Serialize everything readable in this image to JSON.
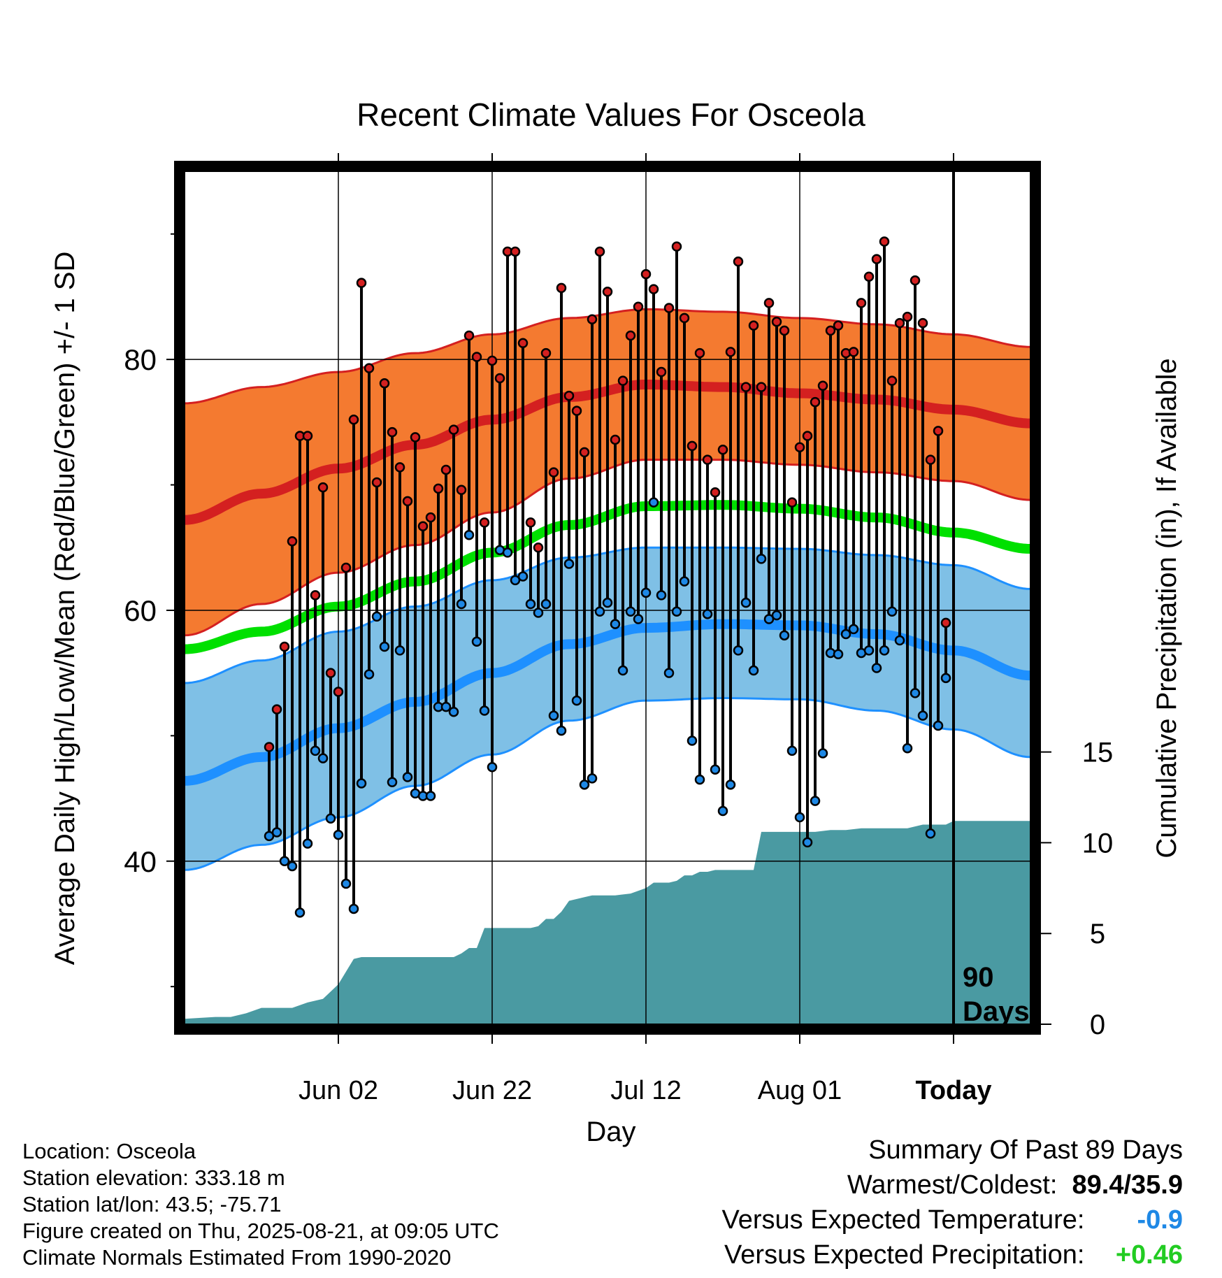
{
  "title": "Recent Climate Values For Osceola",
  "ylabel_left": "Average Daily High/Low/Mean (Red/Blue/Green) +/- 1 SD",
  "ylabel_right": "Cumulative Precipitation (in), If Available",
  "xlabel": "Day",
  "today_label": "Today",
  "days_label_1": "90",
  "days_label_2": "Days",
  "colors": {
    "high_band": "#f47a30",
    "high_line": "#d42020",
    "low_band": "#7fc0e6",
    "low_line": "#1e90ff",
    "mean_line": "#00e000",
    "precip_fill": "#4a9aa2",
    "high_dot": "#d42020",
    "low_dot": "#1e88e5"
  },
  "info": {
    "location": "Location: Osceola",
    "elevation": "Station elevation: 333.18 m",
    "latlon": "Station lat/lon: 43.5; -75.71",
    "created": "Figure created on Thu, 2025-08-21, at 09:05 UTC",
    "normals": "Climate Normals Estimated From 1990-2020"
  },
  "summary": {
    "heading": "Summary Of Past 89 Days",
    "warm_cold_label": "Warmest/Coldest:",
    "warm_cold_value": "89.4/35.9",
    "temp_label": "Versus Expected Temperature:",
    "temp_value": "-0.9",
    "temp_color": "#1e88e5",
    "precip_label": "Versus Expected Precipitation:",
    "precip_value": "+0.46",
    "precip_color": "#22cc22"
  },
  "chart_data": {
    "type": "line",
    "title": "Recent Climate Values For Osceola",
    "xlabel": "Day",
    "ylabel": "Average Daily High/Low/Mean (Red/Blue/Green) +/- 1 SD",
    "y2label": "Cumulative Precipitation (in), If Available",
    "x_range_days": [
      -100,
      10
    ],
    "x_unit": "days relative to today (2025-08-21)",
    "ylim": [
      27,
      95
    ],
    "y2lim": [
      0,
      47
    ],
    "y_ticks": [
      40,
      60,
      80
    ],
    "y_minor_ticks": [
      30,
      50,
      70,
      90
    ],
    "y2_ticks": [
      0,
      5,
      10,
      15
    ],
    "x_ticks": [
      {
        "day": -80,
        "label": "Jun 02"
      },
      {
        "day": -60,
        "label": "Jun 22"
      },
      {
        "day": -40,
        "label": "Jul 12"
      },
      {
        "day": -20,
        "label": "Aug 01"
      },
      {
        "day": 0,
        "label": "Today"
      }
    ],
    "grid": true,
    "normals": {
      "days": [
        -100,
        -90,
        -80,
        -70,
        -60,
        -50,
        -40,
        -30,
        -20,
        -10,
        0,
        10
      ],
      "high_mean": [
        67.2,
        69.3,
        71.3,
        73.2,
        75.2,
        77.0,
        78.0,
        77.8,
        77.3,
        76.8,
        76.0,
        74.9
      ],
      "high_upper": [
        76.5,
        77.8,
        79.0,
        80.5,
        82.0,
        83.3,
        84.0,
        83.8,
        83.3,
        82.8,
        82.0,
        81.0
      ],
      "high_lower": [
        58.0,
        60.5,
        63.0,
        65.2,
        67.8,
        70.5,
        72.0,
        72.0,
        71.6,
        71.0,
        70.3,
        68.8
      ],
      "mean": [
        56.9,
        58.3,
        60.3,
        62.3,
        64.6,
        66.8,
        68.3,
        68.4,
        68.1,
        67.4,
        66.2,
        64.9
      ],
      "low_mean": [
        46.4,
        48.3,
        50.6,
        52.7,
        55.0,
        57.3,
        58.6,
        58.9,
        58.8,
        58.1,
        56.8,
        54.8
      ],
      "low_upper": [
        54.2,
        56.0,
        58.3,
        60.3,
        62.4,
        64.2,
        65.0,
        65.0,
        64.9,
        64.4,
        63.6,
        61.7
      ],
      "low_lower": [
        39.3,
        41.3,
        43.5,
        46.0,
        48.5,
        51.2,
        52.8,
        53.0,
        52.9,
        52.0,
        50.5,
        48.3
      ]
    },
    "daily": {
      "days": [
        -89,
        -88,
        -87,
        -86,
        -85,
        -84,
        -83,
        -82,
        -81,
        -80,
        -79,
        -78,
        -77,
        -76,
        -75,
        -74,
        -73,
        -72,
        -71,
        -70,
        -69,
        -68,
        -67,
        -66,
        -65,
        -64,
        -63,
        -62,
        -61,
        -60,
        -59,
        -58,
        -57,
        -56,
        -55,
        -54,
        -53,
        -52,
        -51,
        -50,
        -49,
        -48,
        -47,
        -46,
        -45,
        -44,
        -43,
        -42,
        -41,
        -40,
        -39,
        -38,
        -37,
        -36,
        -35,
        -34,
        -33,
        -32,
        -31,
        -30,
        -29,
        -28,
        -27,
        -26,
        -25,
        -24,
        -23,
        -22,
        -21,
        -20,
        -19,
        -18,
        -17,
        -16,
        -15,
        -14,
        -13,
        -12,
        -11,
        -10,
        -9,
        -8,
        -7,
        -6,
        -5,
        -4,
        -3,
        -2,
        -1
      ],
      "highs": [
        49.1,
        52.1,
        57.1,
        65.5,
        73.9,
        73.9,
        61.2,
        69.8,
        55.0,
        53.5,
        63.4,
        75.2,
        86.1,
        79.3,
        70.2,
        78.1,
        74.2,
        71.4,
        68.7,
        73.8,
        66.7,
        67.4,
        69.7,
        71.2,
        74.4,
        69.6,
        81.9,
        80.2,
        67.0,
        79.9,
        78.5,
        88.6,
        88.6,
        81.3,
        67.0,
        65.0,
        80.5,
        71.0,
        85.7,
        77.1,
        75.9,
        72.6,
        83.2,
        88.6,
        85.4,
        73.6,
        78.3,
        81.9,
        84.2,
        86.8,
        85.6,
        79.0,
        84.1,
        89.0,
        83.3,
        73.1,
        80.5,
        72.0,
        69.4,
        72.8,
        80.6,
        87.8,
        77.8,
        82.7,
        77.8,
        84.5,
        83.0,
        82.3,
        68.6,
        73.0,
        73.9,
        76.6,
        77.9,
        82.3,
        82.7,
        80.5,
        80.6,
        84.5,
        86.6,
        88.0,
        89.4,
        78.3,
        82.9,
        83.4,
        86.3,
        82.9,
        72.0,
        74.3,
        59.0
      ],
      "lows": [
        42.0,
        42.3,
        40.0,
        39.6,
        35.9,
        41.4,
        48.8,
        48.2,
        43.4,
        42.1,
        38.2,
        36.2,
        46.2,
        54.9,
        59.5,
        57.1,
        46.3,
        56.8,
        46.7,
        45.4,
        45.2,
        45.2,
        52.3,
        52.3,
        51.9,
        60.5,
        66.0,
        57.5,
        52.0,
        47.5,
        64.8,
        64.6,
        62.4,
        62.7,
        60.5,
        59.8,
        60.5,
        51.6,
        50.4,
        63.7,
        52.8,
        46.1,
        46.6,
        59.9,
        60.6,
        58.9,
        55.2,
        59.9,
        59.3,
        61.4,
        68.6,
        61.2,
        55.0,
        59.9,
        62.3,
        49.6,
        46.5,
        59.7,
        47.3,
        44.0,
        46.1,
        56.8,
        60.6,
        55.2,
        64.1,
        59.3,
        59.6,
        58.0,
        48.8,
        43.5,
        41.5,
        44.8,
        48.6,
        56.6,
        56.5,
        58.1,
        58.5,
        56.6,
        56.8,
        55.4,
        56.8,
        59.9,
        57.6,
        49.0,
        53.4,
        51.6,
        42.2,
        50.8,
        54.6
      ]
    },
    "precip_cumulative": {
      "days": [
        -100,
        -96,
        -94,
        -92,
        -90,
        -88,
        -86,
        -84,
        -82,
        -80,
        -78,
        -77,
        -76,
        -75,
        -74,
        -73,
        -72,
        -71,
        -70,
        -69,
        -68,
        -67,
        -66,
        -65,
        -64,
        -63,
        -62,
        -61,
        -60,
        -59,
        -58,
        -57,
        -56,
        -55,
        -54,
        -53,
        -52,
        -51,
        -50,
        -49,
        -48,
        -47,
        -46,
        -44,
        -42,
        -40,
        -39,
        -38,
        -37,
        -36,
        -35,
        -34,
        -33,
        -32,
        -31,
        -30,
        -29,
        -28,
        -27,
        -26,
        -25,
        -24,
        -23,
        -22,
        -21,
        -20,
        -19,
        -18,
        -16,
        -14,
        -12,
        -10,
        -8,
        -7,
        -6,
        -4,
        -2,
        -1,
        0,
        1,
        10
      ],
      "values": [
        0.3,
        0.4,
        0.4,
        0.6,
        0.9,
        0.9,
        0.9,
        1.2,
        1.4,
        2.2,
        3.6,
        3.7,
        3.7,
        3.7,
        3.7,
        3.7,
        3.7,
        3.7,
        3.7,
        3.7,
        3.7,
        3.7,
        3.7,
        3.7,
        3.9,
        4.2,
        4.2,
        5.3,
        5.3,
        5.3,
        5.3,
        5.3,
        5.3,
        5.3,
        5.4,
        5.8,
        5.8,
        6.2,
        6.8,
        6.9,
        7.0,
        7.1,
        7.1,
        7.1,
        7.2,
        7.5,
        7.8,
        7.8,
        7.8,
        7.9,
        8.2,
        8.2,
        8.4,
        8.4,
        8.5,
        8.5,
        8.5,
        8.5,
        8.5,
        8.5,
        10.6,
        10.6,
        10.6,
        10.6,
        10.6,
        10.6,
        10.6,
        10.6,
        10.7,
        10.7,
        10.8,
        10.8,
        10.8,
        10.8,
        10.8,
        11.0,
        11.0,
        11.0,
        11.2,
        11.2,
        11.2
      ]
    }
  }
}
